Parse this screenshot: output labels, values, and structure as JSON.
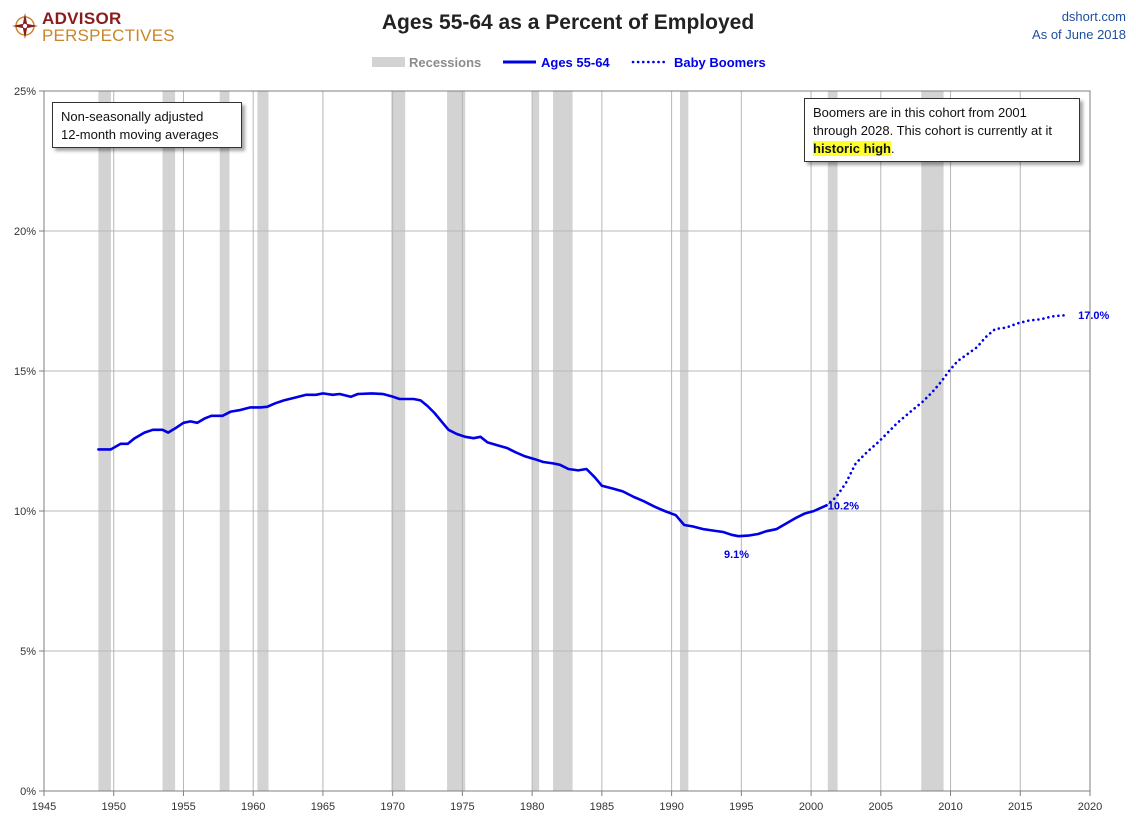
{
  "header": {
    "logo_line1": "ADVISOR",
    "logo_line2": "PERSPECTIVES",
    "source_site": "dshort.com",
    "source_date": "As of June 2018"
  },
  "notes": {
    "left": [
      "Non-seasonally adjusted",
      "12-month moving averages"
    ],
    "right_line1": "Boomers are in this cohort from 2001",
    "right_line2": "through 2028.  This cohort is currently at it",
    "right_highlight": "historic high",
    "right_end": "."
  },
  "colors": {
    "series": "#0000e6",
    "recession": "#d3d3d3",
    "grid": "#b8b8b8",
    "axis": "#7f7f7f",
    "title": "#222222",
    "logo_red": "#8b1c1c",
    "logo_gold": "#c9862a",
    "source_blue": "#1f4e9c"
  },
  "chart_data": {
    "type": "line",
    "title": "Ages 55-64 as a Percent of Employed",
    "xlabel": "",
    "ylabel": "",
    "xlim": [
      1945,
      2020
    ],
    "ylim": [
      0,
      25
    ],
    "x_ticks": [
      "1945",
      "1950",
      "1955",
      "1960",
      "1965",
      "1970",
      "1975",
      "1980",
      "1985",
      "1990",
      "1995",
      "2000",
      "2005",
      "2010",
      "2015",
      "2020"
    ],
    "y_ticks": [
      "0%",
      "5%",
      "10%",
      "15%",
      "20%",
      "25%"
    ],
    "grid": "vertical and horizontal",
    "legend": [
      "Recessions",
      "Ages 55-64",
      "Baby Boomers"
    ],
    "legend_placement": "top-center",
    "recessions": [
      [
        1948.9,
        1949.8
      ],
      [
        1953.5,
        1954.4
      ],
      [
        1957.6,
        1958.3
      ],
      [
        1960.3,
        1961.1
      ],
      [
        1969.9,
        1970.9
      ],
      [
        1973.9,
        1975.2
      ],
      [
        1980.0,
        1980.5
      ],
      [
        1981.5,
        1982.9
      ],
      [
        1990.6,
        1991.2
      ],
      [
        2001.2,
        2001.9
      ],
      [
        2007.9,
        2009.5
      ]
    ],
    "series": [
      {
        "name": "Ages 55-64",
        "style": "solid",
        "points": [
          [
            1948.9,
            12.2
          ],
          [
            1949.8,
            12.2
          ],
          [
            1950.5,
            12.4
          ],
          [
            1951.0,
            12.4
          ],
          [
            1951.5,
            12.6
          ],
          [
            1952.2,
            12.8
          ],
          [
            1952.8,
            12.9
          ],
          [
            1953.5,
            12.9
          ],
          [
            1953.9,
            12.8
          ],
          [
            1954.4,
            12.95
          ],
          [
            1955.0,
            13.15
          ],
          [
            1955.5,
            13.2
          ],
          [
            1956.0,
            13.15
          ],
          [
            1956.5,
            13.3
          ],
          [
            1957.0,
            13.4
          ],
          [
            1957.8,
            13.4
          ],
          [
            1958.4,
            13.55
          ],
          [
            1959.0,
            13.6
          ],
          [
            1959.8,
            13.7
          ],
          [
            1960.5,
            13.7
          ],
          [
            1961.0,
            13.72
          ],
          [
            1961.6,
            13.85
          ],
          [
            1962.2,
            13.95
          ],
          [
            1963.0,
            14.05
          ],
          [
            1963.8,
            14.15
          ],
          [
            1964.5,
            14.15
          ],
          [
            1965.0,
            14.2
          ],
          [
            1965.7,
            14.15
          ],
          [
            1966.2,
            14.18
          ],
          [
            1967.0,
            14.08
          ],
          [
            1967.5,
            14.18
          ],
          [
            1968.5,
            14.2
          ],
          [
            1969.3,
            14.18
          ],
          [
            1969.9,
            14.1
          ],
          [
            1970.5,
            14.0
          ],
          [
            1971.5,
            14.0
          ],
          [
            1972.0,
            13.95
          ],
          [
            1972.5,
            13.75
          ],
          [
            1973.0,
            13.5
          ],
          [
            1973.5,
            13.2
          ],
          [
            1974.0,
            12.9
          ],
          [
            1974.6,
            12.75
          ],
          [
            1975.2,
            12.65
          ],
          [
            1975.8,
            12.6
          ],
          [
            1976.3,
            12.65
          ],
          [
            1976.8,
            12.45
          ],
          [
            1977.5,
            12.35
          ],
          [
            1978.2,
            12.25
          ],
          [
            1978.8,
            12.1
          ],
          [
            1979.5,
            11.95
          ],
          [
            1980.2,
            11.85
          ],
          [
            1980.8,
            11.75
          ],
          [
            1981.5,
            11.7
          ],
          [
            1982.0,
            11.65
          ],
          [
            1982.6,
            11.5
          ],
          [
            1983.3,
            11.45
          ],
          [
            1983.9,
            11.5
          ],
          [
            1984.5,
            11.2
          ],
          [
            1985.0,
            10.9
          ],
          [
            1985.8,
            10.8
          ],
          [
            1986.5,
            10.7
          ],
          [
            1987.3,
            10.5
          ],
          [
            1988.0,
            10.35
          ],
          [
            1988.8,
            10.15
          ],
          [
            1989.5,
            10.0
          ],
          [
            1990.3,
            9.85
          ],
          [
            1990.9,
            9.5
          ],
          [
            1991.5,
            9.45
          ],
          [
            1992.3,
            9.35
          ],
          [
            1993.0,
            9.3
          ],
          [
            1993.7,
            9.25
          ],
          [
            1994.3,
            9.15
          ],
          [
            1994.8,
            9.1
          ],
          [
            1995.5,
            9.12
          ],
          [
            1996.2,
            9.18
          ],
          [
            1996.8,
            9.28
          ],
          [
            1997.5,
            9.35
          ],
          [
            1998.2,
            9.55
          ],
          [
            1998.9,
            9.75
          ],
          [
            1999.5,
            9.9
          ],
          [
            2000.2,
            10.0
          ],
          [
            2001.1,
            10.2
          ]
        ]
      },
      {
        "name": "Baby Boomers",
        "style": "dotted",
        "points": [
          [
            2001.1,
            10.2
          ],
          [
            2001.8,
            10.5
          ],
          [
            2002.5,
            11.0
          ],
          [
            2003.2,
            11.7
          ],
          [
            2004.0,
            12.1
          ],
          [
            2004.8,
            12.45
          ],
          [
            2005.5,
            12.8
          ],
          [
            2006.2,
            13.15
          ],
          [
            2006.9,
            13.45
          ],
          [
            2007.5,
            13.7
          ],
          [
            2008.0,
            13.9
          ],
          [
            2008.7,
            14.25
          ],
          [
            2009.3,
            14.6
          ],
          [
            2009.9,
            15.0
          ],
          [
            2010.5,
            15.35
          ],
          [
            2011.2,
            15.6
          ],
          [
            2011.9,
            15.85
          ],
          [
            2012.5,
            16.2
          ],
          [
            2013.2,
            16.5
          ],
          [
            2014.0,
            16.55
          ],
          [
            2014.8,
            16.7
          ],
          [
            2015.6,
            16.8
          ],
          [
            2016.5,
            16.85
          ],
          [
            2017.3,
            16.95
          ],
          [
            2018.4,
            17.0
          ]
        ]
      }
    ],
    "data_labels": [
      {
        "text": "9.1%",
        "x": 1994.8,
        "y": 9.1
      },
      {
        "text": "10.2%",
        "x": 2001.1,
        "y": 10.2
      },
      {
        "text": "17.0%",
        "x": 2018.4,
        "y": 17.0
      }
    ]
  }
}
